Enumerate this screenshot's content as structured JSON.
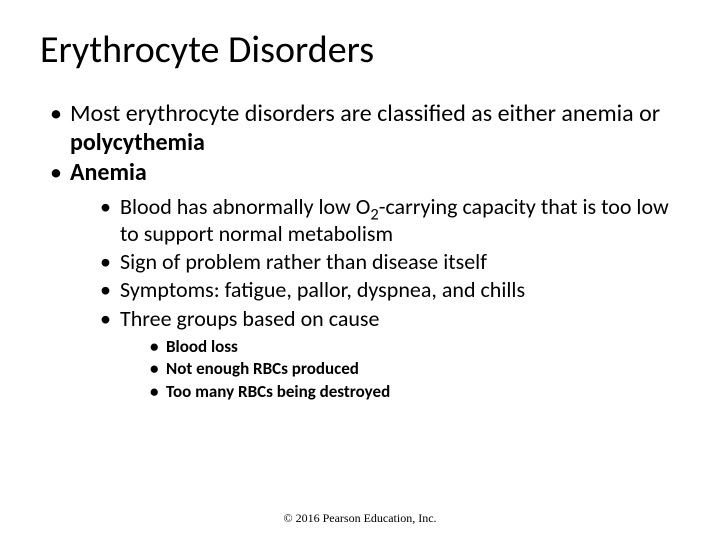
{
  "title": "Erythrocyte Disorders",
  "bullet1a": "Most erythrocyte disorders are classified as either anemia or ",
  "bullet1b": "polycythemia",
  "bullet2": "Anemia",
  "sub1a": "Blood has abnormally low O",
  "sub1_subscript": "2",
  "sub1b": "-carrying capacity that is too low to support normal metabolism",
  "sub2": "Sign of problem rather than disease itself",
  "sub3": "Symptoms: fatigue, pallor, dyspnea, and chills",
  "sub4": "Three groups based on cause",
  "subsub1": "Blood loss",
  "subsub2": "Not enough RBCs produced",
  "subsub3": "Too many RBCs being destroyed",
  "copyright": "© 2016 Pearson Education, Inc."
}
